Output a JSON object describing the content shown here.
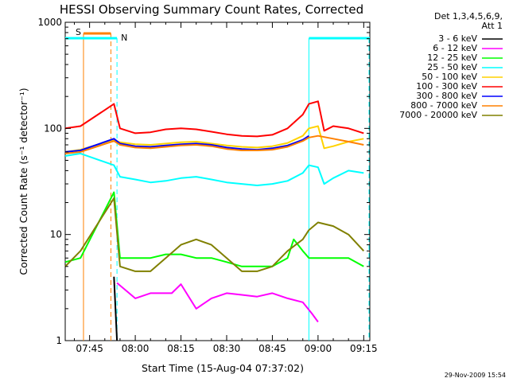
{
  "title": "HESSI Observing Summary Count Rates, Corrected",
  "footer_date": "29-Nov-2009 15:54",
  "colors": {
    "3-6": "#000000",
    "6-12": "#ff00ff",
    "12-25": "#00ff00",
    "25-50": "#00ffff",
    "50-100": "#ffd200",
    "100-300": "#ff0000",
    "300-800": "#0000ff",
    "800-7000": "#ff8000",
    "7000-20000": "#808000",
    "attenuator": "#ff8000",
    "night": "#00ffff"
  },
  "chart_data": {
    "type": "line",
    "title": "HESSI Observing Summary Count Rates, Corrected",
    "xlabel": "Start Time (15-Aug-04 07:37:02)",
    "ylabel": "Corrected Count Rate (s⁻¹ detector⁻¹)",
    "yscale": "log",
    "ylim": [
      1,
      1000
    ],
    "xlim": [
      "07:37",
      "09:17"
    ],
    "x_ticks": [
      "07:45",
      "08:00",
      "08:15",
      "08:30",
      "08:45",
      "09:00",
      "09:15"
    ],
    "y_ticks": [
      "1",
      "10",
      "100",
      "1000"
    ],
    "legend_header": [
      "Det 1,3,4,5,6,9,",
      "Att 1"
    ],
    "legend_position": "right-outside",
    "annotations": [
      {
        "label": "S",
        "kind": "attenuator",
        "x_start": "07:43",
        "x_end": "07:52"
      },
      {
        "label": "N",
        "kind": "night",
        "x_start": "07:37",
        "x_end": "07:54"
      },
      {
        "label": "",
        "kind": "night",
        "x_start": "08:57",
        "x_end": "09:17"
      }
    ],
    "series": [
      {
        "name": "3 - 6 keV",
        "key": "3-6",
        "x": [
          "07:53",
          "07:54"
        ],
        "values": [
          4,
          1
        ]
      },
      {
        "name": "6 - 12 keV",
        "key": "6-12",
        "x": [
          "07:54",
          "08:00",
          "08:05",
          "08:12",
          "08:15",
          "08:20",
          "08:25",
          "08:30",
          "08:35",
          "08:40",
          "08:45",
          "08:50",
          "08:55",
          "08:58",
          "09:00"
        ],
        "values": [
          3.5,
          2.5,
          2.8,
          2.8,
          3.4,
          2.0,
          2.5,
          2.8,
          2.7,
          2.6,
          2.8,
          2.5,
          2.3,
          1.8,
          1.5
        ]
      },
      {
        "name": "12 - 25 keV",
        "key": "12-25",
        "x": [
          "07:37",
          "07:42",
          "07:53",
          "07:55",
          "08:00",
          "08:05",
          "08:10",
          "08:15",
          "08:20",
          "08:25",
          "08:30",
          "08:35",
          "08:40",
          "08:45",
          "08:50",
          "08:52",
          "08:55",
          "08:57",
          "09:00",
          "09:05",
          "09:10",
          "09:15"
        ],
        "values": [
          5.5,
          6,
          25,
          6,
          6,
          6,
          6.5,
          6.5,
          6,
          6,
          5.5,
          5,
          5,
          5,
          6,
          9,
          7,
          6,
          6,
          6,
          6,
          5
        ]
      },
      {
        "name": "25 - 50 keV",
        "key": "25-50",
        "x": [
          "07:37",
          "07:42",
          "07:53",
          "07:55",
          "08:00",
          "08:05",
          "08:10",
          "08:15",
          "08:20",
          "08:25",
          "08:30",
          "08:35",
          "08:40",
          "08:45",
          "08:50",
          "08:55",
          "08:57",
          "09:00",
          "09:02",
          "09:05",
          "09:10",
          "09:15"
        ],
        "values": [
          55,
          58,
          45,
          35,
          33,
          31,
          32,
          34,
          35,
          33,
          31,
          30,
          29,
          30,
          32,
          38,
          45,
          43,
          30,
          34,
          40,
          38
        ]
      },
      {
        "name": "50 - 100 keV",
        "key": "50-100",
        "x": [
          "07:37",
          "07:42",
          "07:53",
          "07:55",
          "08:00",
          "08:05",
          "08:10",
          "08:15",
          "08:20",
          "08:25",
          "08:30",
          "08:35",
          "08:40",
          "08:45",
          "08:50",
          "08:55",
          "08:57",
          "09:00",
          "09:02",
          "09:05",
          "09:10",
          "09:15"
        ],
        "values": [
          60,
          63,
          78,
          74,
          71,
          70,
          72,
          74,
          75,
          72,
          69,
          67,
          66,
          68,
          73,
          85,
          100,
          105,
          65,
          68,
          75,
          80
        ]
      },
      {
        "name": "100 - 300 keV",
        "key": "100-300",
        "x": [
          "07:37",
          "07:42",
          "07:53",
          "07:55",
          "08:00",
          "08:05",
          "08:10",
          "08:15",
          "08:20",
          "08:25",
          "08:30",
          "08:35",
          "08:40",
          "08:45",
          "08:50",
          "08:55",
          "08:57",
          "09:00",
          "09:02",
          "09:05",
          "09:10",
          "09:15"
        ],
        "values": [
          100,
          105,
          170,
          100,
          90,
          92,
          98,
          100,
          98,
          93,
          88,
          85,
          84,
          87,
          100,
          135,
          170,
          180,
          95,
          105,
          100,
          90
        ]
      },
      {
        "name": "300 - 800 keV",
        "key": "300-800",
        "x": [
          "07:37",
          "07:42",
          "07:53",
          "07:55",
          "08:00",
          "08:05",
          "08:10",
          "08:15",
          "08:20",
          "08:25",
          "08:30",
          "08:35",
          "08:40",
          "08:45",
          "08:50",
          "08:55",
          "08:57"
        ],
        "values": [
          60,
          62,
          80,
          72,
          68,
          67,
          69,
          71,
          72,
          70,
          66,
          64,
          63,
          65,
          69,
          78,
          85
        ]
      },
      {
        "name": "800 - 7000 keV",
        "key": "800-7000",
        "x": [
          "07:37",
          "07:42",
          "07:53",
          "07:55",
          "08:00",
          "08:05",
          "08:10",
          "08:15",
          "08:20",
          "08:25",
          "08:30",
          "08:35",
          "08:40",
          "08:45",
          "08:50",
          "08:55",
          "08:57",
          "09:00",
          "09:05",
          "09:10",
          "09:15"
        ],
        "values": [
          58,
          60,
          76,
          70,
          66,
          65,
          67,
          69,
          70,
          68,
          64,
          62,
          62,
          63,
          67,
          76,
          82,
          85,
          80,
          75,
          70
        ]
      },
      {
        "name": "7000 - 20000 keV",
        "key": "7000-20000",
        "x": [
          "07:37",
          "07:42",
          "07:53",
          "07:55",
          "08:00",
          "08:05",
          "08:10",
          "08:15",
          "08:20",
          "08:25",
          "08:30",
          "08:35",
          "08:40",
          "08:45",
          "08:50",
          "08:55",
          "08:57",
          "09:00",
          "09:05",
          "09:10",
          "09:15"
        ],
        "values": [
          5,
          7,
          22,
          5,
          4.5,
          4.5,
          6,
          8,
          9,
          8,
          6,
          4.5,
          4.5,
          5,
          7,
          9,
          11,
          13,
          12,
          10,
          7
        ]
      }
    ]
  }
}
